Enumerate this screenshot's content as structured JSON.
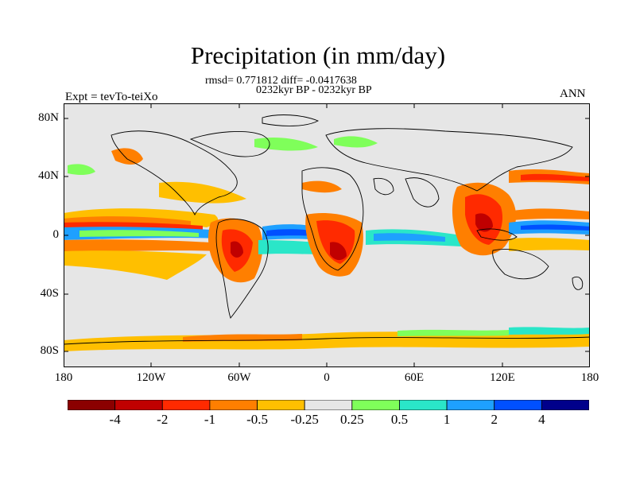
{
  "title": "Precipitation (in mm/day)",
  "stats_line": "rmsd= 0.771812 diff= -0.0417638",
  "period_line": "0232kyr BP - 0232kyr BP",
  "left_label": "Expt = tevTo-teiXo",
  "right_label": "ANN",
  "lat_ticks": [
    "80N",
    "40N",
    "0",
    "40S",
    "80S"
  ],
  "lon_ticks": [
    "180",
    "120W",
    "60W",
    "0",
    "60E",
    "120E",
    "180"
  ],
  "colorbar": {
    "colors": [
      "#8b0000",
      "#c00000",
      "#ff2a00",
      "#ff7f00",
      "#ffbf00",
      "#e6e6e6",
      "#7fff5a",
      "#2ae6c8",
      "#1ea0ff",
      "#0050ff",
      "#00008b"
    ],
    "labels": [
      "-4",
      "-2",
      "-1",
      "-0.5",
      "-0.25",
      "0.25",
      "0.5",
      "1",
      "2",
      "4"
    ]
  },
  "map_background": "#e6e6e6"
}
